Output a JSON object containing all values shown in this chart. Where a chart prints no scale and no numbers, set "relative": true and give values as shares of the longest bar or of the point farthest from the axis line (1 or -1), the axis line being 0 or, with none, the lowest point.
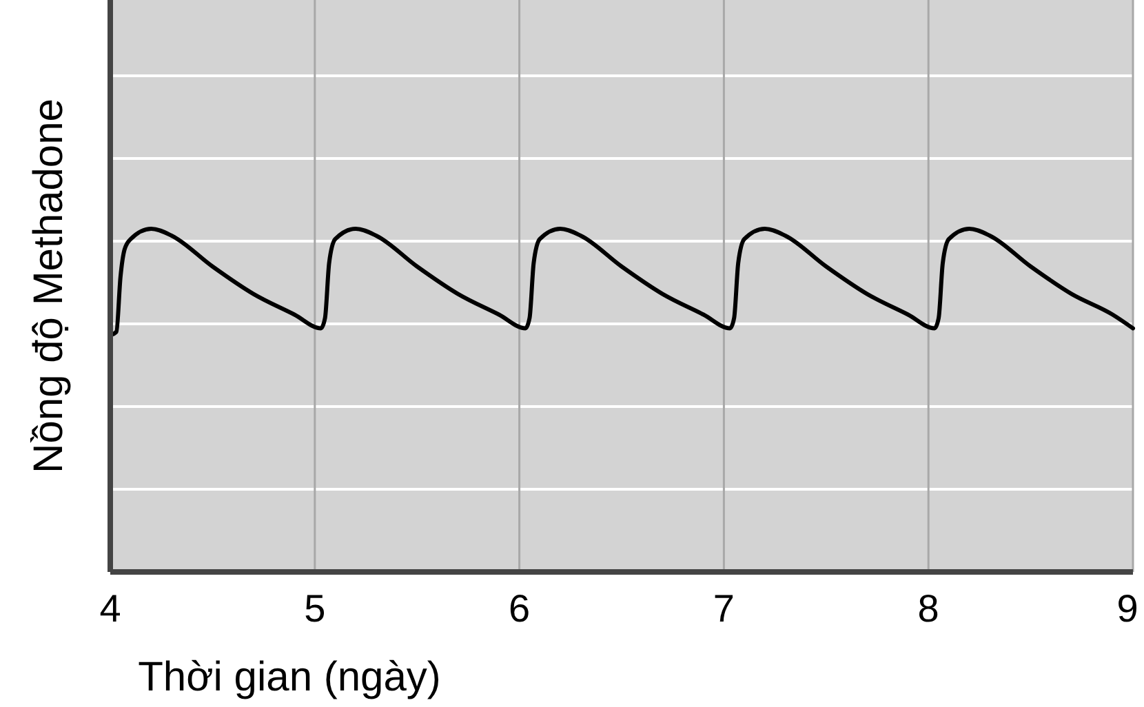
{
  "chart_data": {
    "type": "line",
    "xlabel": "Thời gian (ngày)",
    "ylabel": "Nồng độ Methadone",
    "relative": true,
    "xlim": [
      4,
      9
    ],
    "xticks": [
      4,
      5,
      6,
      7,
      8,
      9
    ],
    "grid": true,
    "line_style": "solid",
    "marker": "none",
    "series": [
      {
        "color": "#000000",
        "x": [
          4,
          4.03,
          4.05,
          4.07,
          4.1,
          4.2,
          4.3,
          4.5,
          4.7,
          4.9,
          5.03,
          5.05,
          5.07,
          5.1,
          5.2,
          5.3,
          5.5,
          5.7,
          5.9,
          6.03,
          6.05,
          6.07,
          6.1,
          6.2,
          6.3,
          6.5,
          6.7,
          6.9,
          7.03,
          7.05,
          7.07,
          7.1,
          7.2,
          7.3,
          7.5,
          7.7,
          7.9,
          8.03,
          8.05,
          8.07,
          8.1,
          8.2,
          8.3,
          8.5,
          8.7,
          8.9,
          9
        ],
        "values": [
          0.69,
          0.7,
          0.86,
          0.94,
          0.97,
          1,
          0.98,
          0.89,
          0.81,
          0.75,
          0.71,
          0.74,
          0.9,
          0.97,
          1,
          0.98,
          0.89,
          0.81,
          0.75,
          0.71,
          0.74,
          0.9,
          0.97,
          1,
          0.98,
          0.89,
          0.81,
          0.75,
          0.71,
          0.74,
          0.9,
          0.97,
          1,
          0.98,
          0.89,
          0.81,
          0.75,
          0.71,
          0.74,
          0.9,
          0.97,
          1,
          0.98,
          0.89,
          0.81,
          0.75,
          0.71
        ]
      }
    ]
  }
}
